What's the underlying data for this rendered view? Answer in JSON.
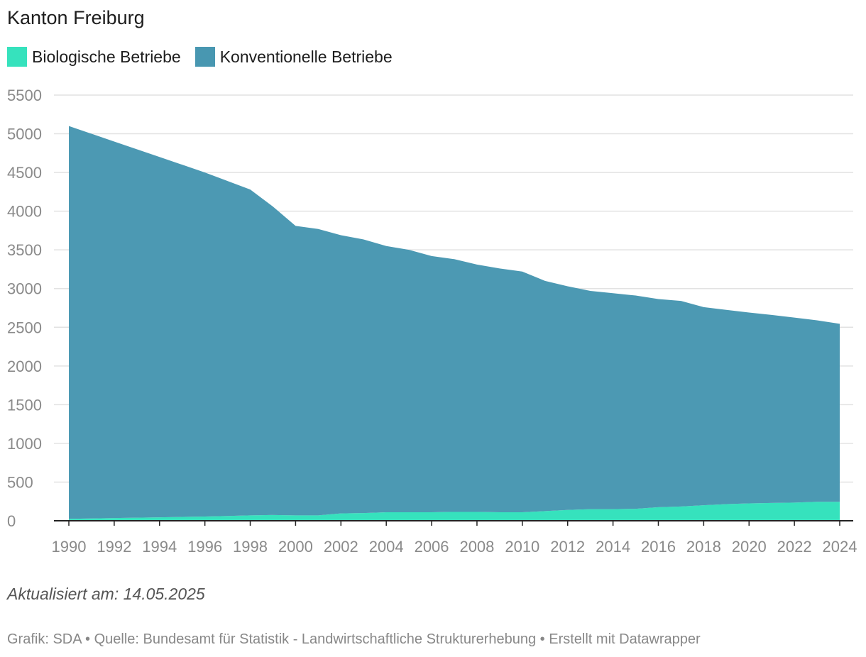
{
  "title": "Kanton Freiburg",
  "note": "Aktualisiert am: 14.05.2025",
  "credits": "Grafik: SDA • Quelle: Bundesamt für Statistik - Landwirtschaftliche Strukturerhebung • Erstellt mit Datawrapper",
  "chart_data": {
    "type": "area",
    "stacked": true,
    "x": [
      1990,
      1991,
      1992,
      1993,
      1994,
      1995,
      1996,
      1997,
      1998,
      1999,
      2000,
      2001,
      2002,
      2003,
      2004,
      2005,
      2006,
      2007,
      2008,
      2009,
      2010,
      2011,
      2012,
      2013,
      2014,
      2015,
      2016,
      2017,
      2018,
      2019,
      2020,
      2021,
      2022,
      2023,
      2024
    ],
    "series": [
      {
        "name": "Biologische Betriebe",
        "color": "#36e2bd",
        "values": [
          25,
          30,
          35,
          40,
          45,
          50,
          55,
          62,
          70,
          75,
          70,
          70,
          95,
          100,
          110,
          110,
          110,
          115,
          115,
          110,
          110,
          125,
          140,
          150,
          150,
          155,
          175,
          185,
          200,
          215,
          225,
          230,
          235,
          245,
          245
        ]
      },
      {
        "name": "Konventionelle Betriebe",
        "color": "#4897b1",
        "values": [
          5075,
          4970,
          4865,
          4760,
          4655,
          4550,
          4445,
          4328,
          4210,
          3985,
          3740,
          3700,
          3595,
          3535,
          3440,
          3390,
          3310,
          3265,
          3195,
          3150,
          3110,
          2975,
          2890,
          2820,
          2790,
          2755,
          2690,
          2655,
          2560,
          2510,
          2465,
          2430,
          2390,
          2345,
          2300
        ]
      }
    ],
    "x_ticks": [
      1990,
      1992,
      1994,
      1996,
      1998,
      2000,
      2002,
      2004,
      2006,
      2008,
      2010,
      2012,
      2014,
      2016,
      2018,
      2020,
      2022,
      2024
    ],
    "y_ticks": [
      0,
      500,
      1000,
      1500,
      2000,
      2500,
      3000,
      3500,
      4000,
      4500,
      5000,
      5500
    ],
    "ylim": [
      0,
      5500
    ],
    "grid": true,
    "legend": "top-left"
  }
}
